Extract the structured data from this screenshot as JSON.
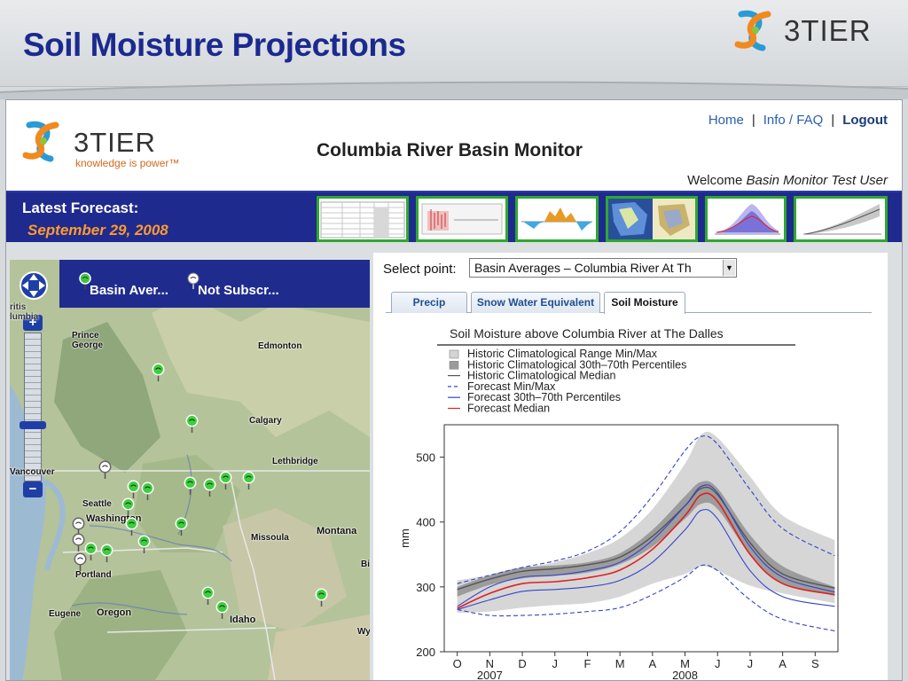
{
  "slide": {
    "title": "Soil Moisture Projections",
    "logo_text": "3TIER"
  },
  "app": {
    "logo_name": "3TIER",
    "logo_tagline": "knowledge is power™",
    "title": "Columbia River Basin Monitor",
    "nav": {
      "home": "Home",
      "info": "Info / FAQ",
      "logout": "Logout",
      "separator": "|"
    },
    "welcome_prefix": "Welcome",
    "welcome_user": "Basin Monitor Test User"
  },
  "forecast": {
    "label": "Latest Forecast:",
    "date": "September 29, 2008",
    "thumbnails": [
      "table-thumbnail",
      "boxplot-thumbnail",
      "anomaly-thumbnail",
      "maps-thumbnail",
      "plume-thumbnail",
      "range-thumbnail"
    ]
  },
  "map": {
    "legend_basin": "Basin Aver...",
    "legend_not_subscribed": "Not Subscr...",
    "places": [
      {
        "id": "prince-george",
        "name": "Prince\nGeorge"
      },
      {
        "id": "edmonton",
        "name": "Edmonton"
      },
      {
        "id": "calgary",
        "name": "Calgary"
      },
      {
        "id": "lethbridge",
        "name": "Lethbridge"
      },
      {
        "id": "vancouver",
        "name": "Vancouver"
      },
      {
        "id": "seattle",
        "name": "Seattle"
      },
      {
        "id": "washington",
        "name": "Washington"
      },
      {
        "id": "missoula",
        "name": "Missoula"
      },
      {
        "id": "montana",
        "name": "Montana"
      },
      {
        "id": "portland",
        "name": "Portland"
      },
      {
        "id": "eugene",
        "name": "Eugene"
      },
      {
        "id": "oregon",
        "name": "Oregon"
      },
      {
        "id": "idaho",
        "name": "Idaho"
      },
      {
        "id": "bill",
        "name": "Bill"
      },
      {
        "id": "wyo",
        "name": "Wyo"
      },
      {
        "id": "british-columbia",
        "name": "ritis\nlumbia"
      }
    ],
    "zoom_in": "+",
    "zoom_out": "−"
  },
  "panel": {
    "select_label": "Select point:",
    "select_value": "Basin Averages – Columbia River At Th",
    "tabs": [
      {
        "label": "Precip",
        "active": false
      },
      {
        "label": "Snow Water Equivalent",
        "active": false
      },
      {
        "label": "Soil Moisture",
        "active": true
      }
    ]
  },
  "chart_data": {
    "type": "line",
    "title": "Soil Moisture above Columbia River at The Dalles",
    "ylabel": "mm",
    "xlabel": "",
    "ylim": [
      200,
      550
    ],
    "yticks": [
      200,
      300,
      400,
      500
    ],
    "x_months": [
      "O",
      "N",
      "D",
      "J",
      "F",
      "M",
      "A",
      "M",
      "J",
      "J",
      "A",
      "S"
    ],
    "x_years": [
      {
        "label": "2007",
        "month_index": 1
      },
      {
        "label": "2008",
        "month_index": 7
      }
    ],
    "legend": [
      {
        "label": "Historic Climatological Range Min/Max",
        "kind": "patch",
        "color": "#d4d4d4"
      },
      {
        "label": "Historic Climatological 30th–70th Percentiles",
        "kind": "patch",
        "color": "#9a9a9a"
      },
      {
        "label": "Historic Climatological Median",
        "kind": "line",
        "color": "#555555",
        "dash": false
      },
      {
        "label": "Forecast Min/Max",
        "kind": "line",
        "color": "#3344cc",
        "dash": true
      },
      {
        "label": "Forecast 30th–70th Percentiles",
        "kind": "line",
        "color": "#3344cc",
        "dash": false
      },
      {
        "label": "Forecast Median",
        "kind": "line",
        "color": "#e02020",
        "dash": false
      }
    ],
    "x": [
      0,
      1,
      2,
      3,
      4,
      5,
      6,
      7,
      7.5,
      8,
      9,
      10,
      11.6
    ],
    "series": [
      {
        "id": "hist_max",
        "values": [
          310,
          318,
          328,
          338,
          352,
          375,
          420,
          490,
          535,
          530,
          470,
          410,
          372
        ]
      },
      {
        "id": "hist_p70",
        "values": [
          300,
          318,
          330,
          333,
          338,
          352,
          388,
          440,
          462,
          452,
          380,
          332,
          300
        ]
      },
      {
        "id": "hist_median",
        "values": [
          296,
          312,
          324,
          328,
          334,
          346,
          378,
          425,
          452,
          442,
          368,
          320,
          298
        ]
      },
      {
        "id": "hist_p30",
        "values": [
          285,
          303,
          313,
          317,
          322,
          335,
          362,
          405,
          428,
          420,
          350,
          306,
          286
        ]
      },
      {
        "id": "hist_min",
        "values": [
          260,
          262,
          268,
          272,
          275,
          285,
          305,
          320,
          332,
          325,
          302,
          290,
          275
        ]
      },
      {
        "id": "fc_max",
        "values": [
          305,
          318,
          330,
          340,
          355,
          385,
          440,
          510,
          532,
          520,
          450,
          390,
          348
        ]
      },
      {
        "id": "fc_p70",
        "values": [
          270,
          300,
          315,
          318,
          325,
          338,
          372,
          425,
          455,
          445,
          362,
          315,
          292
        ]
      },
      {
        "id": "fc_median",
        "values": [
          267,
          290,
          305,
          308,
          314,
          326,
          358,
          410,
          442,
          432,
          350,
          305,
          288
        ]
      },
      {
        "id": "fc_p30",
        "values": [
          265,
          280,
          293,
          296,
          300,
          310,
          338,
          388,
          418,
          405,
          325,
          285,
          270
        ]
      },
      {
        "id": "fc_min",
        "values": [
          265,
          256,
          256,
          258,
          262,
          268,
          288,
          315,
          333,
          325,
          280,
          250,
          232
        ]
      }
    ]
  }
}
